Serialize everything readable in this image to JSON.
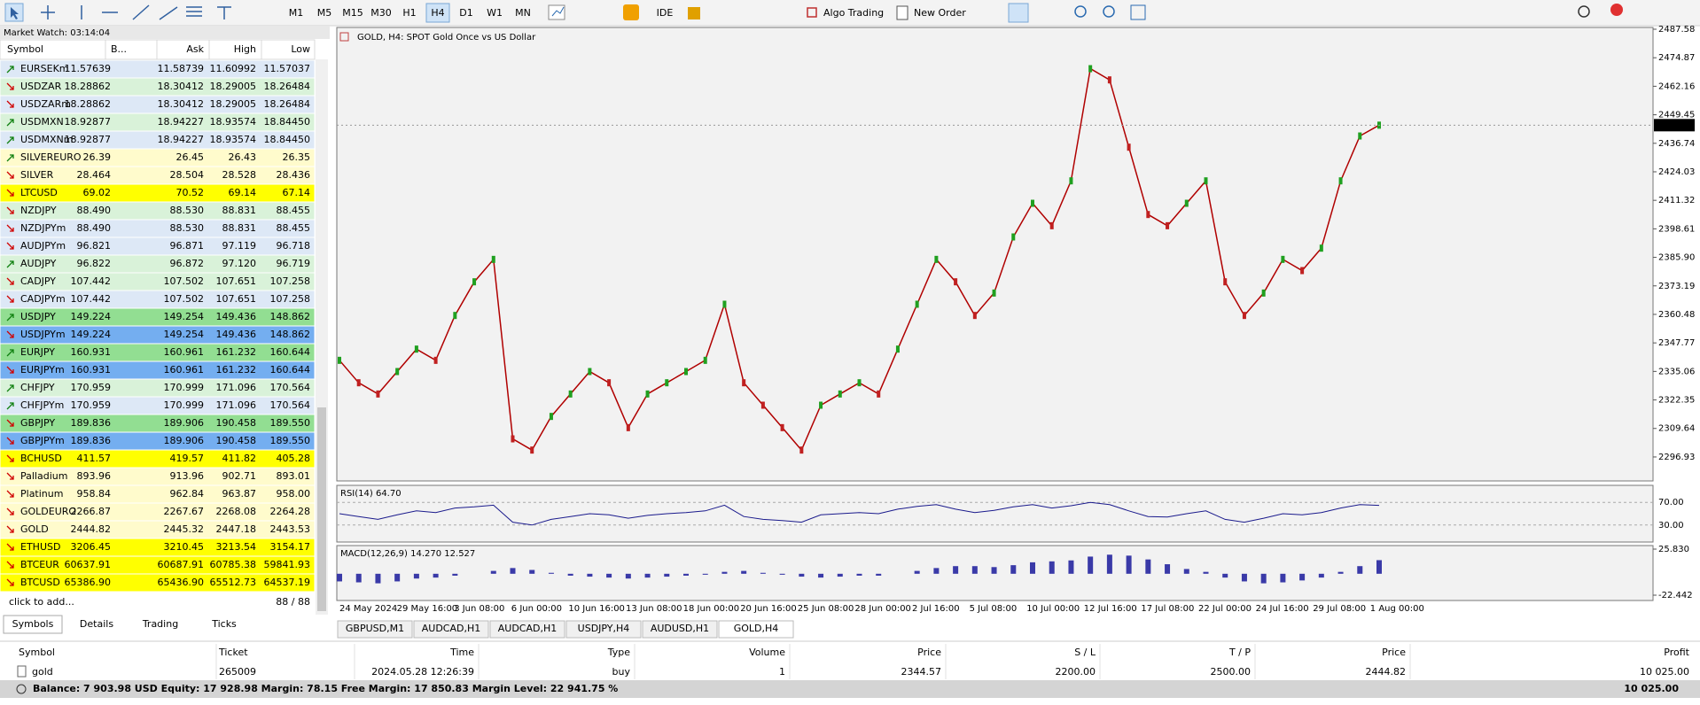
{
  "toolbar": {
    "timeframes": [
      "M1",
      "M5",
      "M15",
      "M30",
      "H1",
      "H4",
      "D1",
      "W1",
      "MN"
    ],
    "active_timeframe": "H4",
    "ide": "IDE",
    "algo_trading": "Algo Trading",
    "new_order": "New Order"
  },
  "market_watch": {
    "title": "Market Watch: 03:14:04",
    "columns": [
      "Symbol",
      "B...",
      "Ask",
      "High",
      "Low"
    ],
    "rows": [
      {
        "symbol": "EURSEKm",
        "bid": "11.57639",
        "ask": "11.58739",
        "high": "11.60992",
        "low": "11.57037",
        "dir": "up",
        "bg": "#dde8f6"
      },
      {
        "symbol": "USDZAR",
        "bid": "18.28862",
        "ask": "18.30412",
        "high": "18.29005",
        "low": "18.26484",
        "dir": "down",
        "bg": "#d9f2d9"
      },
      {
        "symbol": "USDZARm",
        "bid": "18.28862",
        "ask": "18.30412",
        "high": "18.29005",
        "low": "18.26484",
        "dir": "down",
        "bg": "#dde8f6"
      },
      {
        "symbol": "USDMXN",
        "bid": "18.92877",
        "ask": "18.94227",
        "high": "18.93574",
        "low": "18.84450",
        "dir": "up",
        "bg": "#d9f2d9"
      },
      {
        "symbol": "USDMXNm",
        "bid": "18.92877",
        "ask": "18.94227",
        "high": "18.93574",
        "low": "18.84450",
        "dir": "up",
        "bg": "#dde8f6"
      },
      {
        "symbol": "SILVEREURO",
        "bid": "26.39",
        "ask": "26.45",
        "high": "26.43",
        "low": "26.35",
        "dir": "up",
        "bg": "#fffbcc"
      },
      {
        "symbol": "SILVER",
        "bid": "28.464",
        "ask": "28.504",
        "high": "28.528",
        "low": "28.436",
        "dir": "down",
        "bg": "#fffbcc"
      },
      {
        "symbol": "LTCUSD",
        "bid": "69.02",
        "ask": "70.52",
        "high": "69.14",
        "low": "67.14",
        "dir": "down",
        "bg": "#ffff00"
      },
      {
        "symbol": "NZDJPY",
        "bid": "88.490",
        "ask": "88.530",
        "high": "88.831",
        "low": "88.455",
        "dir": "down",
        "bg": "#d9f2d9"
      },
      {
        "symbol": "NZDJPYm",
        "bid": "88.490",
        "ask": "88.530",
        "high": "88.831",
        "low": "88.455",
        "dir": "down",
        "bg": "#dde8f6"
      },
      {
        "symbol": "AUDJPYm",
        "bid": "96.821",
        "ask": "96.871",
        "high": "97.119",
        "low": "96.718",
        "dir": "down",
        "bg": "#dde8f6"
      },
      {
        "symbol": "AUDJPY",
        "bid": "96.822",
        "ask": "96.872",
        "high": "97.120",
        "low": "96.719",
        "dir": "up",
        "bg": "#d9f2d9"
      },
      {
        "symbol": "CADJPY",
        "bid": "107.442",
        "ask": "107.502",
        "high": "107.651",
        "low": "107.258",
        "dir": "down",
        "bg": "#d9f2d9"
      },
      {
        "symbol": "CADJPYm",
        "bid": "107.442",
        "ask": "107.502",
        "high": "107.651",
        "low": "107.258",
        "dir": "down",
        "bg": "#dde8f6"
      },
      {
        "symbol": "USDJPY",
        "bid": "149.224",
        "ask": "149.254",
        "high": "149.436",
        "low": "148.862",
        "dir": "up",
        "bg": "#92de92"
      },
      {
        "symbol": "USDJPYm",
        "bid": "149.224",
        "ask": "149.254",
        "high": "149.436",
        "low": "148.862",
        "dir": "down",
        "bg": "#74aef0"
      },
      {
        "symbol": "EURJPY",
        "bid": "160.931",
        "ask": "160.961",
        "high": "161.232",
        "low": "160.644",
        "dir": "up",
        "bg": "#92de92"
      },
      {
        "symbol": "EURJPYm",
        "bid": "160.931",
        "ask": "160.961",
        "high": "161.232",
        "low": "160.644",
        "dir": "down",
        "bg": "#74aef0"
      },
      {
        "symbol": "CHFJPY",
        "bid": "170.959",
        "ask": "170.999",
        "high": "171.096",
        "low": "170.564",
        "dir": "up",
        "bg": "#d9f2d9"
      },
      {
        "symbol": "CHFJPYm",
        "bid": "170.959",
        "ask": "170.999",
        "high": "171.096",
        "low": "170.564",
        "dir": "up",
        "bg": "#dde8f6"
      },
      {
        "symbol": "GBPJPY",
        "bid": "189.836",
        "ask": "189.906",
        "high": "190.458",
        "low": "189.550",
        "dir": "down",
        "bg": "#92de92"
      },
      {
        "symbol": "GBPJPYm",
        "bid": "189.836",
        "ask": "189.906",
        "high": "190.458",
        "low": "189.550",
        "dir": "down",
        "bg": "#74aef0"
      },
      {
        "symbol": "BCHUSD",
        "bid": "411.57",
        "ask": "419.57",
        "high": "411.82",
        "low": "405.28",
        "dir": "down",
        "bg": "#ffff00"
      },
      {
        "symbol": "Palladium",
        "bid": "893.96",
        "ask": "913.96",
        "high": "902.71",
        "low": "893.01",
        "dir": "down",
        "bg": "#fffbcc"
      },
      {
        "symbol": "Platinum",
        "bid": "958.84",
        "ask": "962.84",
        "high": "963.87",
        "low": "958.00",
        "dir": "down",
        "bg": "#fffbcc"
      },
      {
        "symbol": "GOLDEURO",
        "bid": "2266.87",
        "ask": "2267.67",
        "high": "2268.08",
        "low": "2264.28",
        "dir": "down",
        "bg": "#fffbcc"
      },
      {
        "symbol": "GOLD",
        "bid": "2444.82",
        "ask": "2445.32",
        "high": "2447.18",
        "low": "2443.53",
        "dir": "down",
        "bg": "#fffbcc"
      },
      {
        "symbol": "ETHUSD",
        "bid": "3206.45",
        "ask": "3210.45",
        "high": "3213.54",
        "low": "3154.17",
        "dir": "down",
        "bg": "#ffff00"
      },
      {
        "symbol": "BTCEUR",
        "bid": "60637.91",
        "ask": "60687.91",
        "high": "60785.38",
        "low": "59841.93",
        "dir": "down",
        "bg": "#ffff00"
      },
      {
        "symbol": "BTCUSD",
        "bid": "65386.90",
        "ask": "65436.90",
        "high": "65512.73",
        "low": "64537.19",
        "dir": "down",
        "bg": "#ffff00"
      }
    ],
    "footer": "click to add...",
    "count": "88 / 88",
    "tabs": [
      "Symbols",
      "Details",
      "Trading",
      "Ticks"
    ]
  },
  "chart": {
    "title": "GOLD, H4:  SPOT Gold Once vs US Dollar",
    "ylim": [
      2286.25,
      2488.37
    ],
    "yticks": [
      2487.58,
      2474.87,
      2462.16,
      2449.45,
      2436.74,
      2424.03,
      2411.32,
      2398.61,
      {
        "value": 2385.9,
        "label": "2385.90"
      },
      2373.19,
      2360.48,
      2347.77,
      2335.06,
      2322.35,
      2309.64,
      2296.93
    ],
    "current_price": 2444.82,
    "color": "#b00000",
    "closes": [
      2340,
      2330,
      2325,
      2335,
      2345,
      2340,
      2360,
      2375,
      2385,
      2305,
      2300,
      2315,
      2325,
      2335,
      2330,
      2310,
      2325,
      2330,
      2335,
      2340,
      2365,
      2330,
      2320,
      2310,
      2300,
      2320,
      2325,
      2330,
      2325,
      2345,
      2365,
      2385,
      2375,
      2360,
      2370,
      2395,
      2410,
      2400,
      2420,
      2470,
      2465,
      2435,
      2405,
      2400,
      2410,
      2420,
      2375,
      2360,
      2370,
      2385,
      2380,
      2390,
      2420,
      2440,
      2444.82
    ],
    "dates": [
      "24 May 2024",
      "29 May 16:00",
      "3 Jun 08:00",
      "6 Jun 00:00",
      "10 Jun 16:00",
      "13 Jun 08:00",
      "18 Jun 00:00",
      "20 Jun 16:00",
      "25 Jun 08:00",
      "28 Jun 00:00",
      "2 Jul 16:00",
      "5 Jul 08:00",
      "10 Jul 00:00",
      "12 Jul 16:00",
      "17 Jul 08:00",
      "22 Jul 00:00",
      "24 Jul 16:00",
      "29 Jul 08:00",
      "1 Aug 00:00"
    ],
    "rsi": {
      "label": "RSI(14) 64.70",
      "ylim": [
        0,
        100
      ],
      "yticks": [
        {
          "value": 70,
          "label": "70.00"
        },
        {
          "value": 30,
          "label": "30.00"
        }
      ],
      "color": "#1a1a8c",
      "values": [
        50,
        45,
        40,
        48,
        55,
        52,
        60,
        62,
        65,
        35,
        30,
        40,
        45,
        50,
        48,
        42,
        47,
        50,
        52,
        55,
        65,
        45,
        40,
        38,
        35,
        48,
        50,
        52,
        50,
        58,
        63,
        66,
        58,
        52,
        56,
        62,
        66,
        60,
        64,
        70,
        66,
        55,
        45,
        44,
        50,
        55,
        40,
        35,
        42,
        50,
        48,
        52,
        60,
        66,
        64.7
      ]
    },
    "macd": {
      "label": "MACD(12,26,9) 14.270 12.527",
      "ylim": [
        -22.442,
        25.83
      ],
      "yticks": [
        {
          "value": 25.83,
          "label": "25.830"
        },
        -22.442
      ],
      "color": "#3a3aa8",
      "values": [
        -8,
        -9,
        -10,
        -8,
        -5,
        -4,
        -2,
        0,
        3,
        6,
        4,
        1,
        -2,
        -3,
        -4,
        -5,
        -4,
        -3,
        -2,
        -1,
        2,
        3,
        1,
        -1,
        -3,
        -4,
        -3,
        -2,
        -2,
        0,
        3,
        6,
        8,
        8,
        7,
        9,
        12,
        13,
        14,
        18,
        20,
        19,
        15,
        10,
        5,
        2,
        -4,
        -8,
        -10,
        -9,
        -7,
        -4,
        2,
        8,
        14.27
      ]
    },
    "tabs": [
      "GBPUSD,M1",
      "AUDCAD,H1",
      "AUDCAD,H1",
      "USDJPY,H4",
      "AUDUSD,H1",
      "GOLD,H4"
    ],
    "active_tab": "GOLD,H4"
  },
  "trade": {
    "columns": [
      "Symbol",
      "Ticket",
      "Time",
      "Type",
      "Volume",
      "Price",
      "S / L",
      "T / P",
      "Price",
      "Profit"
    ],
    "row": [
      "gold",
      "265009",
      "2024.05.28 12:26:39",
      "buy",
      "1",
      "2344.57",
      "2200.00",
      "2500.00",
      "2444.82",
      "10 025.00"
    ],
    "balance": "Balance: 7 903.98 USD  Equity: 17 928.98  Margin: 78.15  Free Margin: 17 850.83  Margin Level: 22 941.75 %",
    "total_profit": "10 025.00"
  }
}
